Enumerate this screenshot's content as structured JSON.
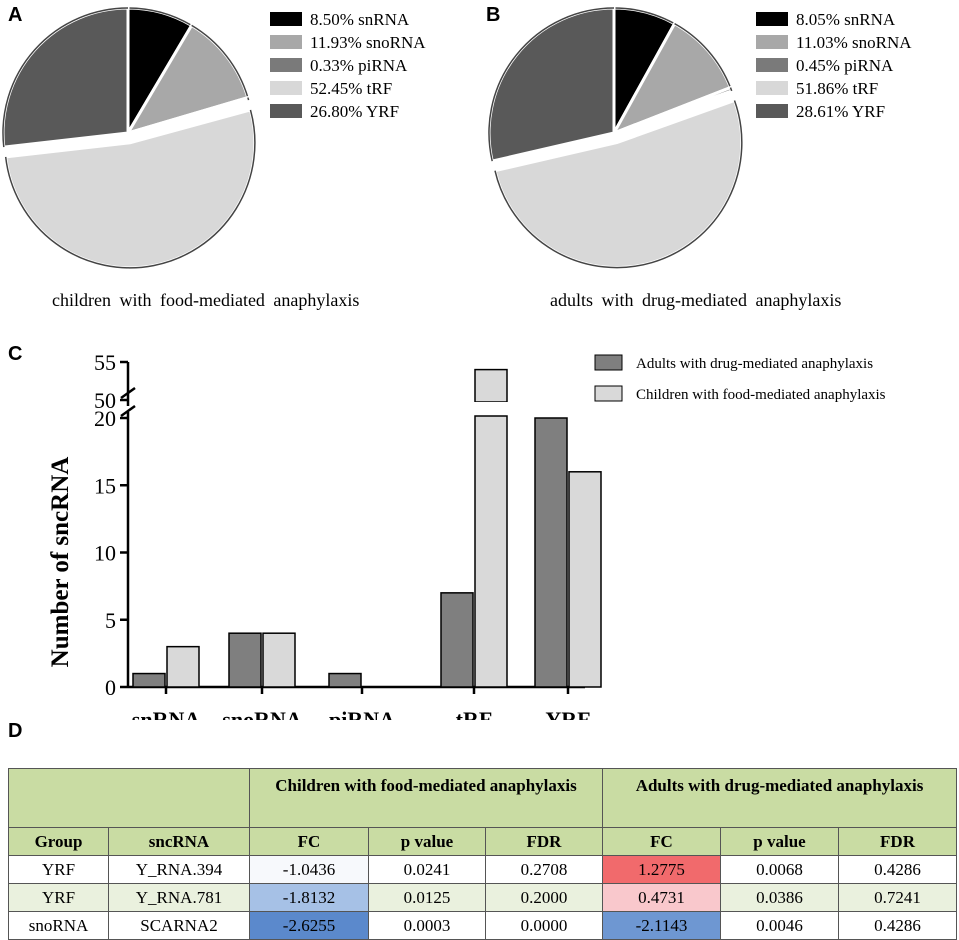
{
  "panels": {
    "a": "A",
    "b": "B",
    "c": "C",
    "d": "D"
  },
  "colors": {
    "snRNA": "#000000",
    "snoRNA": "#a8a8a8",
    "piRNA": "#7a7a7a",
    "tRF": "#d8d8d8",
    "YRF": "#595959",
    "adults_bar": "#7f7f7f",
    "children_bar": "#d9d9d9",
    "table_header": "#c9dca3"
  },
  "pie_a": {
    "caption": "children with food-mediated anaphylaxis",
    "legend": [
      "8.50%  snRNA",
      "11.93%  snoRNA",
      "0.33%  piRNA",
      "52.45%  tRF",
      "26.80%  YRF"
    ]
  },
  "pie_b": {
    "caption": "adults with drug-mediated anaphylaxis",
    "legend": [
      "8.05%  snRNA",
      "11.03%  snoRNA",
      "0.45%  piRNA",
      "51.86%  tRF",
      "28.61%  YRF"
    ]
  },
  "chart_data": [
    {
      "type": "pie",
      "title": "children with food-mediated anaphylaxis",
      "categories": [
        "snRNA",
        "snoRNA",
        "piRNA",
        "tRF",
        "YRF"
      ],
      "values": [
        8.5,
        11.93,
        0.33,
        52.45,
        26.8
      ],
      "exploded": [
        "tRF"
      ]
    },
    {
      "type": "pie",
      "title": "adults with drug-mediated anaphylaxis",
      "categories": [
        "snRNA",
        "snoRNA",
        "piRNA",
        "tRF",
        "YRF"
      ],
      "values": [
        8.05,
        11.03,
        0.45,
        51.86,
        28.61
      ],
      "exploded": [
        "tRF"
      ]
    },
    {
      "type": "bar",
      "categories": [
        "snRNA",
        "snoRNA",
        "piRNA",
        "tRF",
        "YRF"
      ],
      "series": [
        {
          "name": "Adults with drug-mediated anaphylaxis",
          "values": [
            1,
            4,
            1,
            7,
            20
          ]
        },
        {
          "name": "Children with food-mediated anaphylaxis",
          "values": [
            3,
            4,
            0,
            54,
            16
          ]
        }
      ],
      "ylabel": "Number of sncRNA",
      "xlabel": "",
      "ylim": [
        0,
        55
      ],
      "axis_break": [
        20,
        50
      ],
      "yticks_lower": [
        "0",
        "5",
        "10",
        "15",
        "20"
      ],
      "yticks_upper": [
        "50",
        "55"
      ],
      "legend_position": "top-right"
    }
  ],
  "table": {
    "group_children": "Children with food-mediated anaphylaxis",
    "group_adults": "Adults with drug-mediated anaphylaxis",
    "columns": [
      "Group",
      "sncRNA",
      "FC",
      "p value",
      "FDR",
      "FC",
      "p value",
      "FDR"
    ],
    "rows": [
      {
        "group": "YRF",
        "sncrna": "Y_RNA.394",
        "c_fc": "-1.0436",
        "c_p": "0.0241",
        "c_fdr": "0.2708",
        "a_fc": "1.2775",
        "a_p": "0.0068",
        "a_fdr": "0.4286",
        "c_fc_color": "#f7f9fc",
        "a_fc_color": "#f16a6c"
      },
      {
        "group": "YRF",
        "sncrna": "Y_RNA.781",
        "c_fc": "-1.8132",
        "c_p": "0.0125",
        "c_fdr": "0.2000",
        "a_fc": "0.4731",
        "a_p": "0.0386",
        "a_fdr": "0.7241",
        "c_fc_color": "#a6c1e6",
        "a_fc_color": "#f9c8cc"
      },
      {
        "group": "snoRNA",
        "sncrna": "SCARNA2",
        "c_fc": "-2.6255",
        "c_p": "0.0003",
        "c_fdr": "0.0000",
        "a_fc": "-2.1143",
        "a_p": "0.0046",
        "a_fdr": "0.4286",
        "c_fc_color": "#5b89cc",
        "a_fc_color": "#6e97d2"
      }
    ]
  }
}
